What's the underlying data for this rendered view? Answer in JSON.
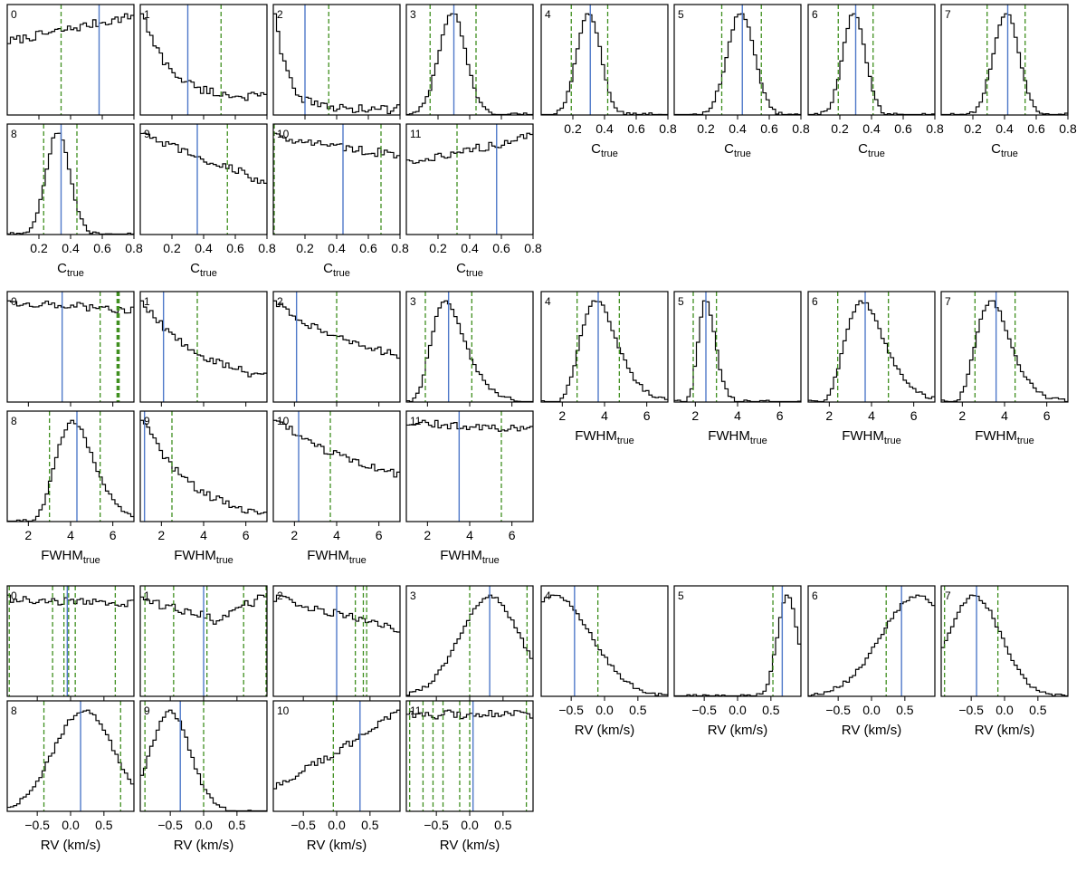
{
  "chart_data": [
    {
      "type": "histogram-grid",
      "parameter": "C",
      "xlabel_main": "C",
      "xlabel_sub": "true",
      "xlim": [
        0.0,
        0.8
      ],
      "xticks": [
        0.2,
        0.4,
        0.6,
        0.8
      ],
      "tick_labels": [
        "0.2",
        "0.4",
        "0.6",
        "0.8"
      ],
      "panels": [
        {
          "label": "0",
          "shape": "ramp",
          "p": [
            0.68,
            0.92,
            0.03
          ],
          "blue": [
            0.58
          ],
          "green": [
            0.34
          ]
        },
        {
          "label": "1",
          "shape": "decay",
          "p": [
            0.95,
            1.6,
            0.15
          ],
          "blue": [
            0.3
          ],
          "green": [
            0.51
          ]
        },
        {
          "label": "2",
          "shape": "decay",
          "p": [
            1.0,
            3.2,
            0.05
          ],
          "blue": [
            0.2
          ],
          "green": [
            0.35
          ]
        },
        {
          "label": "3",
          "shape": "gauss",
          "p": [
            0.29,
            0.085
          ],
          "blue": [
            0.3
          ],
          "green": [
            0.15,
            0.44
          ]
        },
        {
          "label": "4",
          "shape": "gauss",
          "p": [
            0.3,
            0.075
          ],
          "blue": [
            0.31
          ],
          "green": [
            0.19,
            0.42
          ]
        },
        {
          "label": "5",
          "shape": "gauss",
          "p": [
            0.42,
            0.085
          ],
          "blue": [
            0.43
          ],
          "green": [
            0.3,
            0.55
          ]
        },
        {
          "label": "6",
          "shape": "gauss",
          "p": [
            0.29,
            0.07
          ],
          "blue": [
            0.3
          ],
          "green": [
            0.19,
            0.41
          ]
        },
        {
          "label": "7",
          "shape": "gauss",
          "p": [
            0.41,
            0.08
          ],
          "blue": [
            0.42
          ],
          "green": [
            0.29,
            0.53
          ]
        },
        {
          "label": "8",
          "shape": "gauss",
          "p": [
            0.32,
            0.075
          ],
          "blue": [
            0.34
          ],
          "green": [
            0.23,
            0.44
          ]
        },
        {
          "label": "9",
          "shape": "ramp",
          "p": [
            0.92,
            0.48,
            0.03
          ],
          "blue": [
            0.36
          ],
          "green": [
            0.55
          ]
        },
        {
          "label": "10",
          "shape": "ramp",
          "p": [
            0.86,
            0.68,
            0.03
          ],
          "blue": [
            0.44
          ],
          "green": [
            0.0,
            0.68
          ]
        },
        {
          "label": "11",
          "shape": "ramp",
          "p": [
            0.64,
            0.88,
            0.03
          ],
          "blue": [
            0.57
          ],
          "green": [
            0.32
          ]
        }
      ]
    },
    {
      "type": "histogram-grid",
      "parameter": "FWHM",
      "xlabel_main": "FWHM",
      "xlabel_sub": "true",
      "xlim": [
        1.0,
        7.0
      ],
      "xticks": [
        2,
        4,
        6
      ],
      "tick_labels": [
        "2",
        "4",
        "6"
      ],
      "panels": [
        {
          "label": "0",
          "shape": "ramp",
          "p": [
            0.93,
            0.86,
            0.03
          ],
          "blue": [
            3.6
          ],
          "green": [
            5.4,
            6.2,
            6.25,
            6.3
          ]
        },
        {
          "label": "1",
          "shape": "decay",
          "p": [
            1.0,
            0.65,
            0.12
          ],
          "blue": [
            2.1
          ],
          "green": [
            3.7
          ]
        },
        {
          "label": "2",
          "shape": "decay",
          "p": [
            1.0,
            0.42,
            0.25
          ],
          "blue": [
            2.1
          ],
          "green": [
            4.0
          ]
        },
        {
          "label": "3",
          "shape": "lognorm",
          "p": [
            2.85,
            0.28
          ],
          "blue": [
            3.0
          ],
          "green": [
            1.9,
            4.1
          ]
        },
        {
          "label": "4",
          "shape": "lognorm",
          "p": [
            3.6,
            0.24
          ],
          "blue": [
            3.7
          ],
          "green": [
            2.7,
            4.7
          ]
        },
        {
          "label": "5",
          "shape": "lognorm",
          "p": [
            2.5,
            0.16
          ],
          "blue": [
            2.5
          ],
          "green": [
            1.9,
            3.0
          ]
        },
        {
          "label": "6",
          "shape": "lognorm",
          "p": [
            3.55,
            0.26
          ],
          "blue": [
            3.7
          ],
          "green": [
            2.4,
            4.8
          ]
        },
        {
          "label": "7",
          "shape": "lognorm",
          "p": [
            3.35,
            0.24
          ],
          "blue": [
            3.6
          ],
          "green": [
            2.6,
            4.5
          ]
        },
        {
          "label": "8",
          "shape": "lognorm",
          "p": [
            4.1,
            0.22
          ],
          "blue": [
            4.3
          ],
          "green": [
            3.0,
            5.4
          ]
        },
        {
          "label": "9",
          "shape": "decay",
          "p": [
            1.0,
            0.95,
            0.03
          ],
          "blue": [
            1.2
          ],
          "green": [
            2.5
          ]
        },
        {
          "label": "10",
          "shape": "decay",
          "p": [
            1.0,
            0.48,
            0.28
          ],
          "blue": [
            2.2
          ],
          "green": [
            3.7
          ]
        },
        {
          "label": "11",
          "shape": "ramp",
          "p": [
            0.9,
            0.83,
            0.03
          ],
          "blue": [
            3.5
          ],
          "green": [
            5.5
          ]
        }
      ]
    },
    {
      "type": "histogram-grid",
      "parameter": "RV",
      "xlabel_main": "RV (km/s)",
      "xlabel_sub": "",
      "xlim": [
        -0.95,
        0.95
      ],
      "xticks": [
        -0.5,
        0.0,
        0.5
      ],
      "tick_labels": [
        "−0.5",
        "0.0",
        "0.5"
      ],
      "panels": [
        {
          "label": "0",
          "shape": "ramp",
          "p": [
            0.92,
            0.88,
            0.03
          ],
          "blue": [
            -0.05
          ],
          "green": [
            -0.92,
            -0.27,
            -0.1,
            -0.03,
            0.07,
            0.67
          ]
        },
        {
          "label": "1",
          "shape": "dip",
          "p": [
            0.75,
            0.92,
            0.6,
            0.1
          ],
          "blue": [
            0.0
          ],
          "green": [
            -0.88,
            -0.45,
            0.05,
            0.6,
            0.94
          ]
        },
        {
          "label": "2",
          "shape": "ramp",
          "p": [
            0.9,
            0.6,
            0.03
          ],
          "blue": [
            0.0
          ],
          "green": [
            0.28,
            0.4,
            0.45
          ]
        },
        {
          "label": "3",
          "shape": "gauss",
          "p": [
            0.3,
            0.45
          ],
          "blue": [
            0.3
          ],
          "green": [
            0.0,
            0.86
          ]
        },
        {
          "label": "4",
          "shape": "gauss",
          "p": [
            -0.75,
            0.55
          ],
          "blue": [
            -0.45
          ],
          "green": [
            -0.1
          ]
        },
        {
          "label": "5",
          "shape": "gauss",
          "p": [
            0.75,
            0.15
          ],
          "blue": [
            0.67
          ],
          "green": [
            0.53
          ]
        },
        {
          "label": "6",
          "shape": "gauss",
          "p": [
            0.7,
            0.55
          ],
          "blue": [
            0.45
          ],
          "green": [
            0.22
          ]
        },
        {
          "label": "7",
          "shape": "gauss",
          "p": [
            -0.45,
            0.4
          ],
          "blue": [
            -0.42
          ],
          "green": [
            -0.9,
            -0.1
          ]
        },
        {
          "label": "8",
          "shape": "gauss",
          "p": [
            0.2,
            0.45
          ],
          "blue": [
            0.15
          ],
          "green": [
            -0.4,
            0.75
          ]
        },
        {
          "label": "9",
          "shape": "gauss",
          "p": [
            -0.5,
            0.3
          ],
          "blue": [
            -0.35
          ],
          "green": [
            -0.88,
            0.0
          ]
        },
        {
          "label": "10",
          "shape": "ramp",
          "p": [
            0.2,
            0.92,
            0.03
          ],
          "blue": [
            0.35
          ],
          "green": [
            -0.05
          ]
        },
        {
          "label": "11",
          "shape": "ramp",
          "p": [
            0.85,
            0.86,
            0.03
          ],
          "blue": [
            0.05
          ],
          "green": [
            -0.9,
            -0.7,
            -0.55,
            -0.4,
            -0.15,
            0.0,
            0.85
          ]
        }
      ]
    }
  ]
}
